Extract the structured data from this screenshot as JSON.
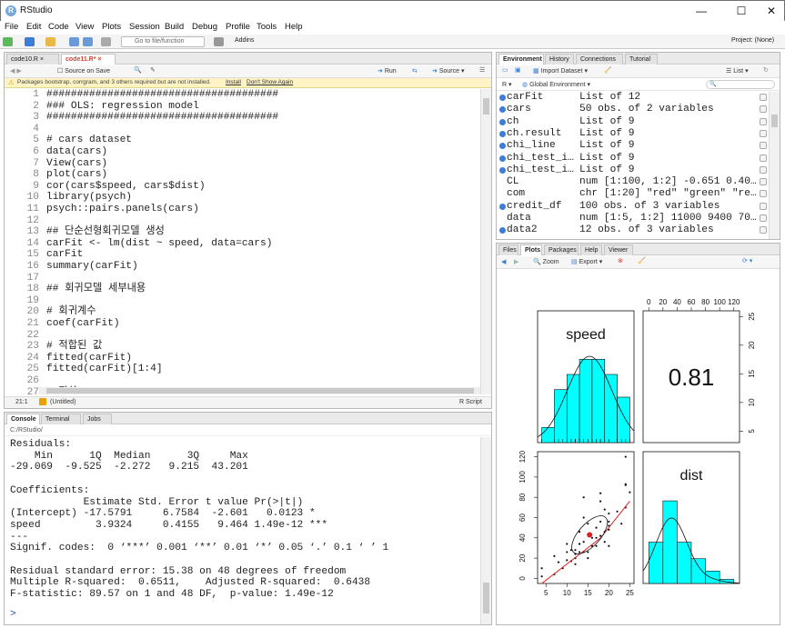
{
  "window": {
    "title": "RStudio"
  },
  "menu": [
    "File",
    "Edit",
    "Code",
    "View",
    "Plots",
    "Session",
    "Build",
    "Debug",
    "Profile",
    "Tools",
    "Help"
  ],
  "toolbar": {
    "goto_placeholder": "Go to file/function",
    "addins": "Addins",
    "project": "Project: (None)"
  },
  "editor": {
    "tabs": [
      {
        "label": "code10.R"
      },
      {
        "label": "code11.R*"
      }
    ],
    "source_on_save": "Source on Save",
    "run": "Run",
    "source": "Source",
    "notice": "Packages bootstrap, corrgram, and 3 others required but are not installed.",
    "install": "Install",
    "dont_show": "Don't Show Again",
    "lines": [
      {
        "n": "1",
        "t": "######################################"
      },
      {
        "n": "2",
        "t": "### OLS: regression model"
      },
      {
        "n": "3",
        "t": "######################################"
      },
      {
        "n": "4",
        "t": ""
      },
      {
        "n": "5",
        "t": "# cars dataset"
      },
      {
        "n": "6",
        "t": "data(cars)"
      },
      {
        "n": "7",
        "t": "View(cars)"
      },
      {
        "n": "8",
        "t": "plot(cars)"
      },
      {
        "n": "9",
        "t": "cor(cars$speed, cars$dist)"
      },
      {
        "n": "10",
        "t": "library(psych)"
      },
      {
        "n": "11",
        "t": "psych::pairs.panels(cars)"
      },
      {
        "n": "12",
        "t": ""
      },
      {
        "n": "13",
        "t": "## 단순선형회귀모델 생성"
      },
      {
        "n": "14",
        "t": "carFit <- lm(dist ~ speed, data=cars)"
      },
      {
        "n": "15",
        "t": "carFit"
      },
      {
        "n": "16",
        "t": "summary(carFit)"
      },
      {
        "n": "17",
        "t": ""
      },
      {
        "n": "18",
        "t": "## 회귀모델 세부내용"
      },
      {
        "n": "19",
        "t": ""
      },
      {
        "n": "20",
        "t": "# 회귀계수"
      },
      {
        "n": "21",
        "t": "coef(carFit)"
      },
      {
        "n": "22",
        "t": ""
      },
      {
        "n": "23",
        "t": "# 적합된 값"
      },
      {
        "n": "24",
        "t": "fitted(carFit)"
      },
      {
        "n": "25",
        "t": "fitted(carFit)[1:4]"
      },
      {
        "n": "26",
        "t": ""
      },
      {
        "n": "27",
        "t": "# 잔차"
      }
    ],
    "status_pos": "21:1",
    "status_scope": "(Untitled)",
    "status_type": "R Script"
  },
  "console": {
    "tabs": [
      {
        "label": "Console"
      },
      {
        "label": "Terminal"
      },
      {
        "label": "Jobs"
      }
    ],
    "path": "C:/RStudio/",
    "lines": [
      "Residuals:",
      "    Min      1Q  Median      3Q     Max ",
      "-29.069  -9.525  -2.272   9.215  43.201 ",
      "",
      "Coefficients:",
      "            Estimate Std. Error t value Pr(>|t|)    ",
      "(Intercept) -17.5791     6.7584  -2.601   0.0123 *  ",
      "speed         3.9324     0.4155   9.464 1.49e-12 ***",
      "---",
      "Signif. codes:  0 ‘***’ 0.001 ‘**’ 0.01 ‘*’ 0.05 ‘.’ 0.1 ‘ ’ 1",
      "",
      "Residual standard error: 15.38 on 48 degrees of freedom",
      "Multiple R-squared:  0.6511,\tAdjusted R-squared:  0.6438 ",
      "F-statistic: 89.57 on 1 and 48 DF,  p-value: 1.49e-12",
      ""
    ],
    "prompt": ">"
  },
  "environment": {
    "tabs": [
      {
        "label": "Environment"
      },
      {
        "label": "History"
      },
      {
        "label": "Connections"
      },
      {
        "label": "Tutorial"
      }
    ],
    "import": "Import Dataset",
    "list": "List",
    "lang": "R",
    "scope": "Global Environment",
    "rows": [
      {
        "name": "carFit",
        "value": "List of  12",
        "bullet": true
      },
      {
        "name": "cars",
        "value": "50 obs. of 2 variables",
        "bullet": true
      },
      {
        "name": "ch",
        "value": "List of  9",
        "bullet": true
      },
      {
        "name": "ch.result",
        "value": "List of  9",
        "bullet": true
      },
      {
        "name": "chi_line",
        "value": "List of  9",
        "bullet": true
      },
      {
        "name": "chi_test_i…",
        "value": "List of  9",
        "bullet": true
      },
      {
        "name": "chi_test_i…",
        "value": "List of  9",
        "bullet": true
      },
      {
        "name": "CL",
        "value": "num [1:100, 1:2] -0.651 0.40…",
        "bullet": false
      },
      {
        "name": "com",
        "value": "chr [1:20] \"red\" \"green\" \"re…",
        "bullet": false
      },
      {
        "name": "credit_df",
        "value": "100 obs. of 3 variables",
        "bullet": true
      },
      {
        "name": "data",
        "value": "num [1:5, 1:2] 11000 9400 70…",
        "bullet": false
      },
      {
        "name": "data2",
        "value": "12 obs. of 3 variables",
        "bullet": true
      }
    ]
  },
  "plots": {
    "tabs": [
      {
        "label": "Files"
      },
      {
        "label": "Plots"
      },
      {
        "label": "Packages"
      },
      {
        "label": "Help"
      },
      {
        "label": "Viewer"
      }
    ],
    "zoom": "Zoom",
    "export": "Export",
    "chart_data": {
      "type": "scatter",
      "title": "",
      "panel_labels": [
        "speed",
        "dist"
      ],
      "correlation": "0.81",
      "top_axis_ticks": [
        "0",
        "20",
        "40",
        "60",
        "80",
        "100",
        "120"
      ],
      "right_axis_ticks": [
        "5",
        "10",
        "15",
        "20",
        "25"
      ],
      "left_axis_ticks": [
        "0",
        "20",
        "40",
        "60",
        "80",
        "100",
        "120"
      ],
      "bottom_axis_ticks": [
        "5",
        "10",
        "15",
        "20",
        "25"
      ],
      "speed_hist": {
        "bins": [
          [
            4,
            7,
            2
          ],
          [
            7,
            10,
            7
          ],
          [
            10,
            13,
            9
          ],
          [
            13,
            16,
            11
          ],
          [
            16,
            19,
            11
          ],
          [
            19,
            22,
            9
          ],
          [
            22,
            25,
            6
          ]
        ]
      },
      "dist_hist": {
        "bins": [
          [
            0,
            20,
            10
          ],
          [
            20,
            40,
            20
          ],
          [
            40,
            60,
            10
          ],
          [
            60,
            80,
            6
          ],
          [
            80,
            100,
            3
          ],
          [
            100,
            120,
            1
          ]
        ]
      },
      "scatter": {
        "x": [
          4,
          4,
          7,
          7,
          8,
          9,
          10,
          10,
          10,
          11,
          11,
          12,
          12,
          12,
          12,
          13,
          13,
          13,
          13,
          14,
          14,
          14,
          14,
          15,
          15,
          15,
          16,
          16,
          17,
          17,
          17,
          18,
          18,
          18,
          18,
          19,
          19,
          19,
          20,
          20,
          20,
          20,
          20,
          22,
          23,
          24,
          24,
          24,
          24,
          25
        ],
        "y": [
          2,
          10,
          4,
          22,
          16,
          10,
          18,
          26,
          34,
          17,
          28,
          14,
          20,
          24,
          28,
          26,
          34,
          34,
          46,
          26,
          36,
          60,
          80,
          20,
          26,
          54,
          32,
          40,
          32,
          40,
          50,
          42,
          56,
          76,
          84,
          36,
          46,
          68,
          32,
          48,
          52,
          56,
          64,
          66,
          54,
          70,
          92,
          93,
          120,
          85
        ]
      },
      "xlim": [
        3,
        26
      ],
      "ylim": [
        -5,
        125
      ]
    }
  }
}
